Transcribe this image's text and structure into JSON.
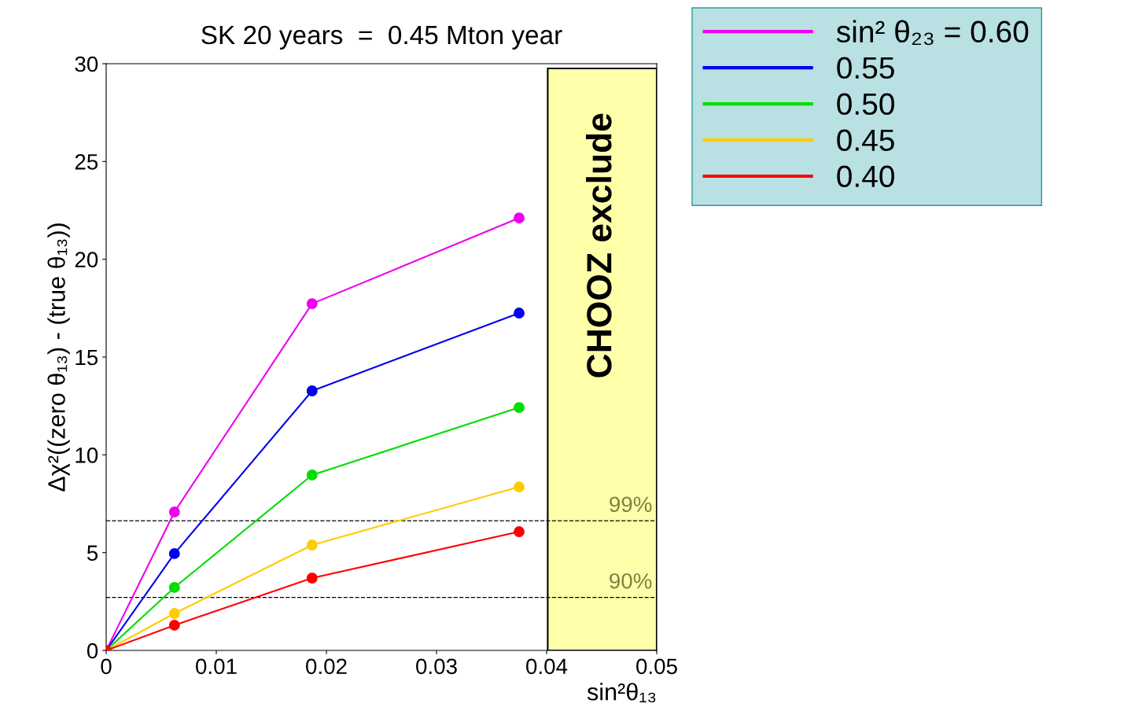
{
  "chart_data": {
    "type": "line",
    "title": "SK 20 years  =  0.45 Mton year",
    "xlabel": "sin²θ₁₃",
    "ylabel": "Δχ²((zero θ₁₃) - (true θ₁₃))",
    "x": [
      0,
      0.0062,
      0.0187,
      0.0375
    ],
    "series": [
      {
        "name": "sin² θ₂₃ = 0.60",
        "color": "#ee00ee",
        "values": [
          0,
          7.08,
          17.73,
          22.11
        ]
      },
      {
        "name": "0.55",
        "color": "#0000ee",
        "values": [
          0,
          4.95,
          13.27,
          17.25
        ]
      },
      {
        "name": "0.50",
        "color": "#00dd00",
        "values": [
          0,
          3.22,
          8.97,
          12.42
        ]
      },
      {
        "name": "0.45",
        "color": "#ffcc00",
        "values": [
          0,
          1.89,
          5.39,
          8.36
        ]
      },
      {
        "name": "0.40",
        "color": "#ff0000",
        "values": [
          0,
          1.29,
          3.7,
          6.07
        ]
      }
    ],
    "xlim": [
      0,
      0.05
    ],
    "xticks": [
      0,
      0.01,
      0.02,
      0.03,
      0.04,
      0.05
    ],
    "ylim": [
      0,
      30
    ],
    "yticks": [
      0,
      5,
      10,
      15,
      20,
      25,
      30
    ],
    "ref_lines": [
      {
        "axis": "y",
        "value": 6.63,
        "line_style": "dashed",
        "color": "#000000"
      },
      {
        "axis": "y",
        "value": 2.71,
        "line_style": "dashed",
        "color": "#000000"
      }
    ],
    "annotations": [
      {
        "text": "99%",
        "x": 0.05,
        "y": 6.63
      },
      {
        "text": "90%",
        "x": 0.05,
        "y": 2.71
      }
    ],
    "bands": [
      {
        "axis": "x",
        "from": 0.0401,
        "to": 0.05,
        "label": "CHOOZ exclude",
        "color": "#ffffaa"
      }
    ],
    "marker": "circle",
    "line_style": "solid",
    "grid": false,
    "legend": "right"
  }
}
